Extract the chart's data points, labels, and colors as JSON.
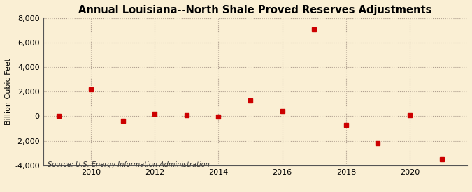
{
  "title": "Annual Louisiana--North Shale Proved Reserves Adjustments",
  "ylabel": "Billion Cubic Feet",
  "source": "Source: U.S. Energy Information Administration",
  "background_color": "#faefd4",
  "marker_color": "#cc0000",
  "years": [
    2009,
    2010,
    2011,
    2012,
    2013,
    2014,
    2015,
    2016,
    2017,
    2018,
    2019,
    2020,
    2021
  ],
  "values": [
    30,
    2200,
    -400,
    200,
    100,
    -50,
    1300,
    450,
    7100,
    -700,
    -2200,
    100,
    -3500
  ],
  "ylim": [
    -4000,
    8000
  ],
  "xlim": [
    2008.5,
    2021.8
  ],
  "yticks": [
    -4000,
    -2000,
    0,
    2000,
    4000,
    6000,
    8000
  ],
  "xticks": [
    2010,
    2012,
    2014,
    2016,
    2018,
    2020
  ],
  "grid_color": "#b0a090",
  "title_fontsize": 10.5,
  "label_fontsize": 8,
  "tick_fontsize": 8,
  "source_fontsize": 7
}
